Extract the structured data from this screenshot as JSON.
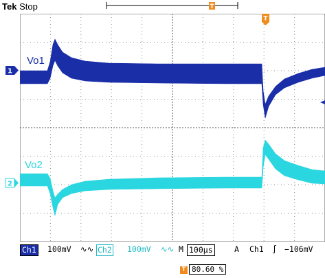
{
  "header": {
    "brand": "Tek",
    "state": "Stop"
  },
  "traces": {
    "ch1_label": "Vo1",
    "ch2_label": "Vo2",
    "ch1_marker": "1",
    "ch2_marker": "2",
    "trigger_marker": "T"
  },
  "status": {
    "ch1_tag": "Ch1",
    "ch1_scale": "100mV",
    "ch1_coupling": "∿∿",
    "ch2_tag": "Ch2",
    "ch2_scale": "100mV",
    "ch2_coupling": "∿∿",
    "time_prefix": "M",
    "time_scale": "100µs",
    "trigger_mode": "A",
    "trigger_source": "Ch1",
    "trigger_slope": "∫",
    "trigger_level": "−106mV"
  },
  "trigger_position": {
    "marker": "T",
    "value": "80.60 %"
  },
  "colors": {
    "ch1": "#1a2ea8",
    "ch2": "#2ad6e0",
    "trigger": "#f08c1e",
    "grid": "#7a7a7a"
  }
}
